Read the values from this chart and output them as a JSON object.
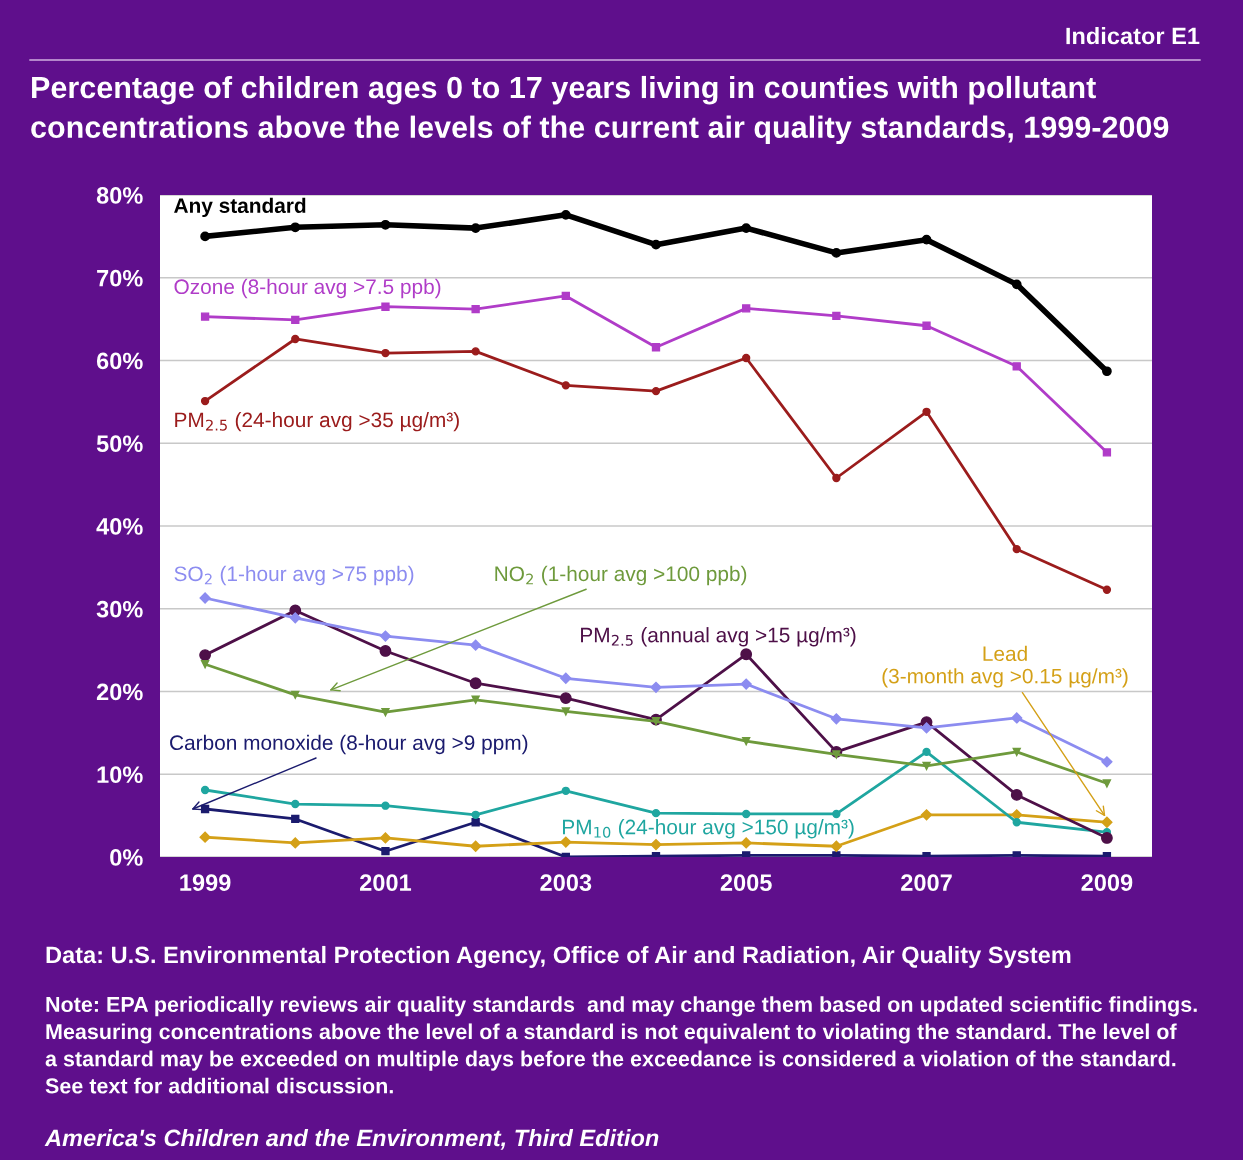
{
  "chart_data": {
    "type": "line",
    "title": "Percentage of children ages 0 to 17 years living in counties with pollutant\nconcentrations above the levels of the current air quality standards, 1999-2009",
    "x": [
      1999,
      2000,
      2001,
      2002,
      2003,
      2004,
      2005,
      2006,
      2007,
      2008,
      2009
    ],
    "series": [
      {
        "name": "Any standard",
        "color": "#000000",
        "marker": "circle",
        "values": [
          75.0,
          76.1,
          76.4,
          76.0,
          77.6,
          74.0,
          76.0,
          73.0,
          74.6,
          69.2,
          58.7
        ]
      },
      {
        "name": "Ozone (8-hour avg >7.5 ppb)",
        "color": "#b03cc8",
        "marker": "square",
        "values": [
          65.3,
          64.9,
          66.5,
          66.2,
          67.8,
          61.6,
          66.3,
          65.4,
          64.2,
          59.3,
          48.9
        ]
      },
      {
        "name": "PM$_{2.5}$ (24-hour avg >35 µg/m³)",
        "color": "#9b1c1c",
        "marker": "circle",
        "values": [
          55.1,
          62.6,
          60.9,
          61.1,
          57.0,
          56.3,
          60.3,
          45.8,
          53.8,
          37.2,
          32.3
        ]
      },
      {
        "name": "SO$_{2}$ (1-hour avg >75 ppb)",
        "color": "#8c8cf0",
        "marker": "diamond",
        "values": [
          31.3,
          28.9,
          26.7,
          25.6,
          21.6,
          20.5,
          20.9,
          16.7,
          15.6,
          16.8,
          11.5
        ]
      },
      {
        "name": "NO$_{2}$ (1-hour avg >100 ppb)",
        "color": "#6e9a3c",
        "marker": "triangle",
        "values": [
          23.3,
          19.6,
          17.5,
          19.0,
          17.6,
          16.4,
          14.0,
          12.4,
          11.0,
          12.7,
          8.9
        ]
      },
      {
        "name": "PM$_{2.5}$ (annual avg >15 µg/m³)",
        "color": "#4e1048",
        "marker": "circle",
        "values": [
          24.4,
          29.8,
          24.9,
          21.0,
          19.2,
          16.6,
          24.5,
          12.7,
          16.3,
          7.5,
          2.3
        ]
      },
      {
        "name": "PM$_{10}$ (24-hour avg >150 µg/m³)",
        "color": "#1fa6a0",
        "marker": "circle",
        "values": [
          8.1,
          6.4,
          6.2,
          5.1,
          8.0,
          5.3,
          5.2,
          5.2,
          12.7,
          4.2,
          3.0
        ]
      },
      {
        "name": "Lead\n(3-month avg >0.15 µg/m³)",
        "color": "#d4a017",
        "marker": "diamond",
        "values": [
          2.4,
          1.7,
          2.3,
          1.3,
          1.8,
          1.5,
          1.7,
          1.3,
          5.1,
          5.1,
          4.2
        ]
      },
      {
        "name": "Carbon monoxide (8-hour avg >9 ppm)",
        "color": "#1b1b6e",
        "marker": "square",
        "values": [
          5.8,
          4.6,
          0.7,
          4.2,
          0.0,
          0.1,
          0.2,
          0.2,
          0.1,
          0.2,
          0.1
        ]
      }
    ],
    "xlim": [
      1998.5,
      2009.5
    ],
    "xticks": [
      1999,
      2001,
      2003,
      2005,
      2007,
      2009
    ],
    "ylim": [
      0,
      80
    ],
    "yticks": [
      {
        "value": 0,
        "label": "0%"
      },
      {
        "value": 10,
        "label": "10%"
      },
      {
        "value": 20,
        "label": "20%"
      },
      {
        "value": 30,
        "label": "30%"
      },
      {
        "value": 40,
        "label": "40%"
      },
      {
        "value": 50,
        "label": "50%"
      },
      {
        "value": 60,
        "label": "60%"
      },
      {
        "value": 70,
        "label": "70%"
      },
      {
        "value": 80,
        "label": "80%"
      }
    ],
    "grid": "y",
    "legend": false,
    "annotations": [
      "Indicator E1",
      "Data: U.S. Environmental Protection Agency, Office of Air and Radiation, Air Quality System",
      "Note: EPA periodically reviews air quality standards  and may change them based on updated scientific findings.\nMeasuring concentrations above the level of a standard is not equivalent to violating the standard. The level of\na standard may be exceeded on multiple days before the exceedance is considered a violation of the standard.\nSee text for additional discussion.",
      "America's Children and the Environment, Third Edition"
    ]
  }
}
